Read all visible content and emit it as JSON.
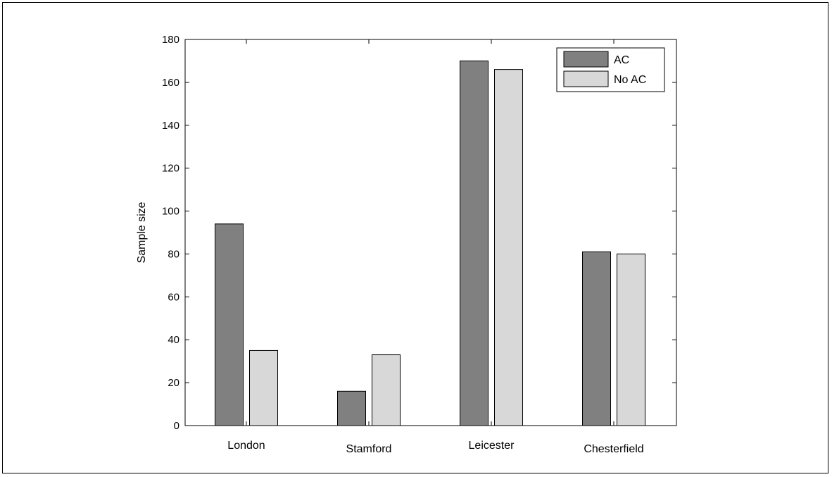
{
  "chart_data": {
    "type": "bar",
    "categories": [
      "London",
      "Stamford",
      "Leicester",
      "Chesterfield"
    ],
    "series": [
      {
        "name": "AC",
        "values": [
          94,
          16,
          170,
          81
        ],
        "color": "#808080"
      },
      {
        "name": "No AC",
        "values": [
          35,
          33,
          166,
          80
        ],
        "color": "#d8d8d8"
      }
    ],
    "ylabel": "Sample size",
    "xlabel": "",
    "ylim": [
      0,
      180
    ],
    "yticks": [
      0,
      20,
      40,
      60,
      80,
      100,
      120,
      140,
      160,
      180
    ],
    "legend_position": "top-right",
    "grid": false
  }
}
